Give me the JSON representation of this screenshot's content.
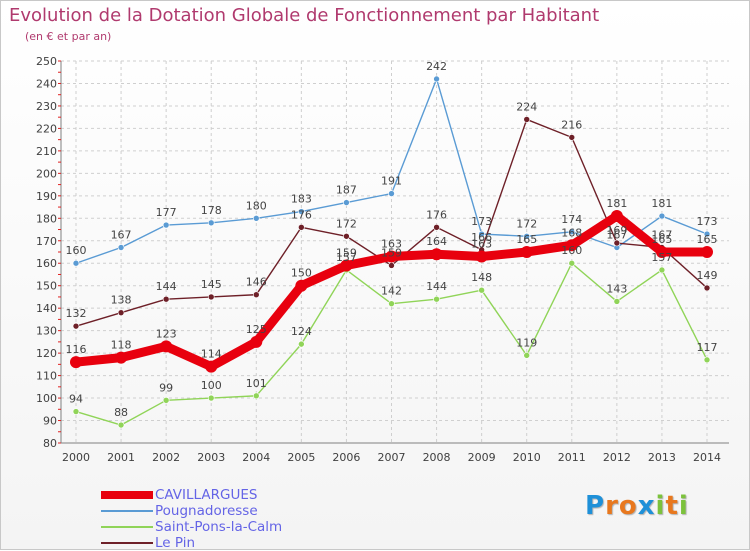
{
  "chart_data": {
    "type": "line",
    "title": "Evolution de la Dotation Globale de Fonctionnement par Habitant",
    "subtitle": "(en € et par an)",
    "categories": [
      "2000",
      "2001",
      "2002",
      "2003",
      "2004",
      "2005",
      "2006",
      "2007",
      "2008",
      "2009",
      "2010",
      "2011",
      "2012",
      "2013",
      "2014"
    ],
    "yticks": [
      80,
      90,
      100,
      110,
      120,
      130,
      140,
      150,
      160,
      170,
      180,
      190,
      200,
      210,
      220,
      230,
      240,
      250
    ],
    "ylim": [
      80,
      250
    ],
    "grid": true,
    "legend_position": "bottom-left",
    "series": [
      {
        "name": "Pougnadoresse",
        "color": "#5a9bd4",
        "values": [
          160,
          167,
          177,
          178,
          180,
          183,
          187,
          191,
          242,
          173,
          172,
          174,
          167,
          181,
          173
        ],
        "labels": [
          "160",
          "167",
          "177",
          "178",
          "180",
          "183",
          "187",
          "191",
          "242",
          "173",
          "172",
          "174",
          "167",
          "181",
          "173"
        ]
      },
      {
        "name": "Saint-Pons-la-Calm",
        "color": "#90d458",
        "values": [
          94,
          88,
          99,
          100,
          101,
          124,
          157,
          142,
          144,
          148,
          119,
          160,
          143,
          157,
          117
        ],
        "labels": [
          "94",
          "88",
          "99",
          "100",
          "101",
          "124",
          "157",
          "142",
          "144",
          "148",
          "119",
          "160",
          "143",
          "157",
          "117"
        ]
      },
      {
        "name": "Le Pin",
        "color": "#6e2028",
        "values": [
          132,
          138,
          144,
          145,
          146,
          176,
          172,
          159,
          176,
          166,
          224,
          216,
          169,
          167,
          149
        ],
        "labels": [
          "132",
          "138",
          "144",
          "145",
          "146",
          "176",
          "172",
          "159",
          "176",
          "166",
          "224",
          "216",
          "169",
          "167",
          "149"
        ]
      },
      {
        "name": "CAVILLARGUES",
        "color": "#e8000e",
        "values": [
          116,
          118,
          123,
          114,
          125,
          150,
          159,
          163,
          164,
          163,
          165,
          168,
          181,
          165,
          165
        ],
        "labels": [
          "116",
          "118",
          "123",
          "114",
          "125",
          "150",
          "159",
          "163",
          "164",
          "163",
          "165",
          "168",
          "181",
          "165",
          "165"
        ]
      }
    ]
  },
  "legend": {
    "items": [
      {
        "label": "CAVILLARGUES",
        "color": "#e8000e",
        "thickness": 8
      },
      {
        "label": "Pougnadoresse",
        "color": "#5a9bd4",
        "thickness": 2
      },
      {
        "label": "Saint-Pons-la-Calm",
        "color": "#90d458",
        "thickness": 2
      },
      {
        "label": "Le Pin",
        "color": "#6e2028",
        "thickness": 2
      }
    ]
  },
  "logo": {
    "letters": [
      "P",
      "r",
      "o",
      "x",
      "i",
      "t",
      "i"
    ],
    "colors": [
      "#1e90d8",
      "#e8781e",
      "#e8781e",
      "#1e90d8",
      "#7cc23c",
      "#e8781e",
      "#7cc23c"
    ]
  }
}
